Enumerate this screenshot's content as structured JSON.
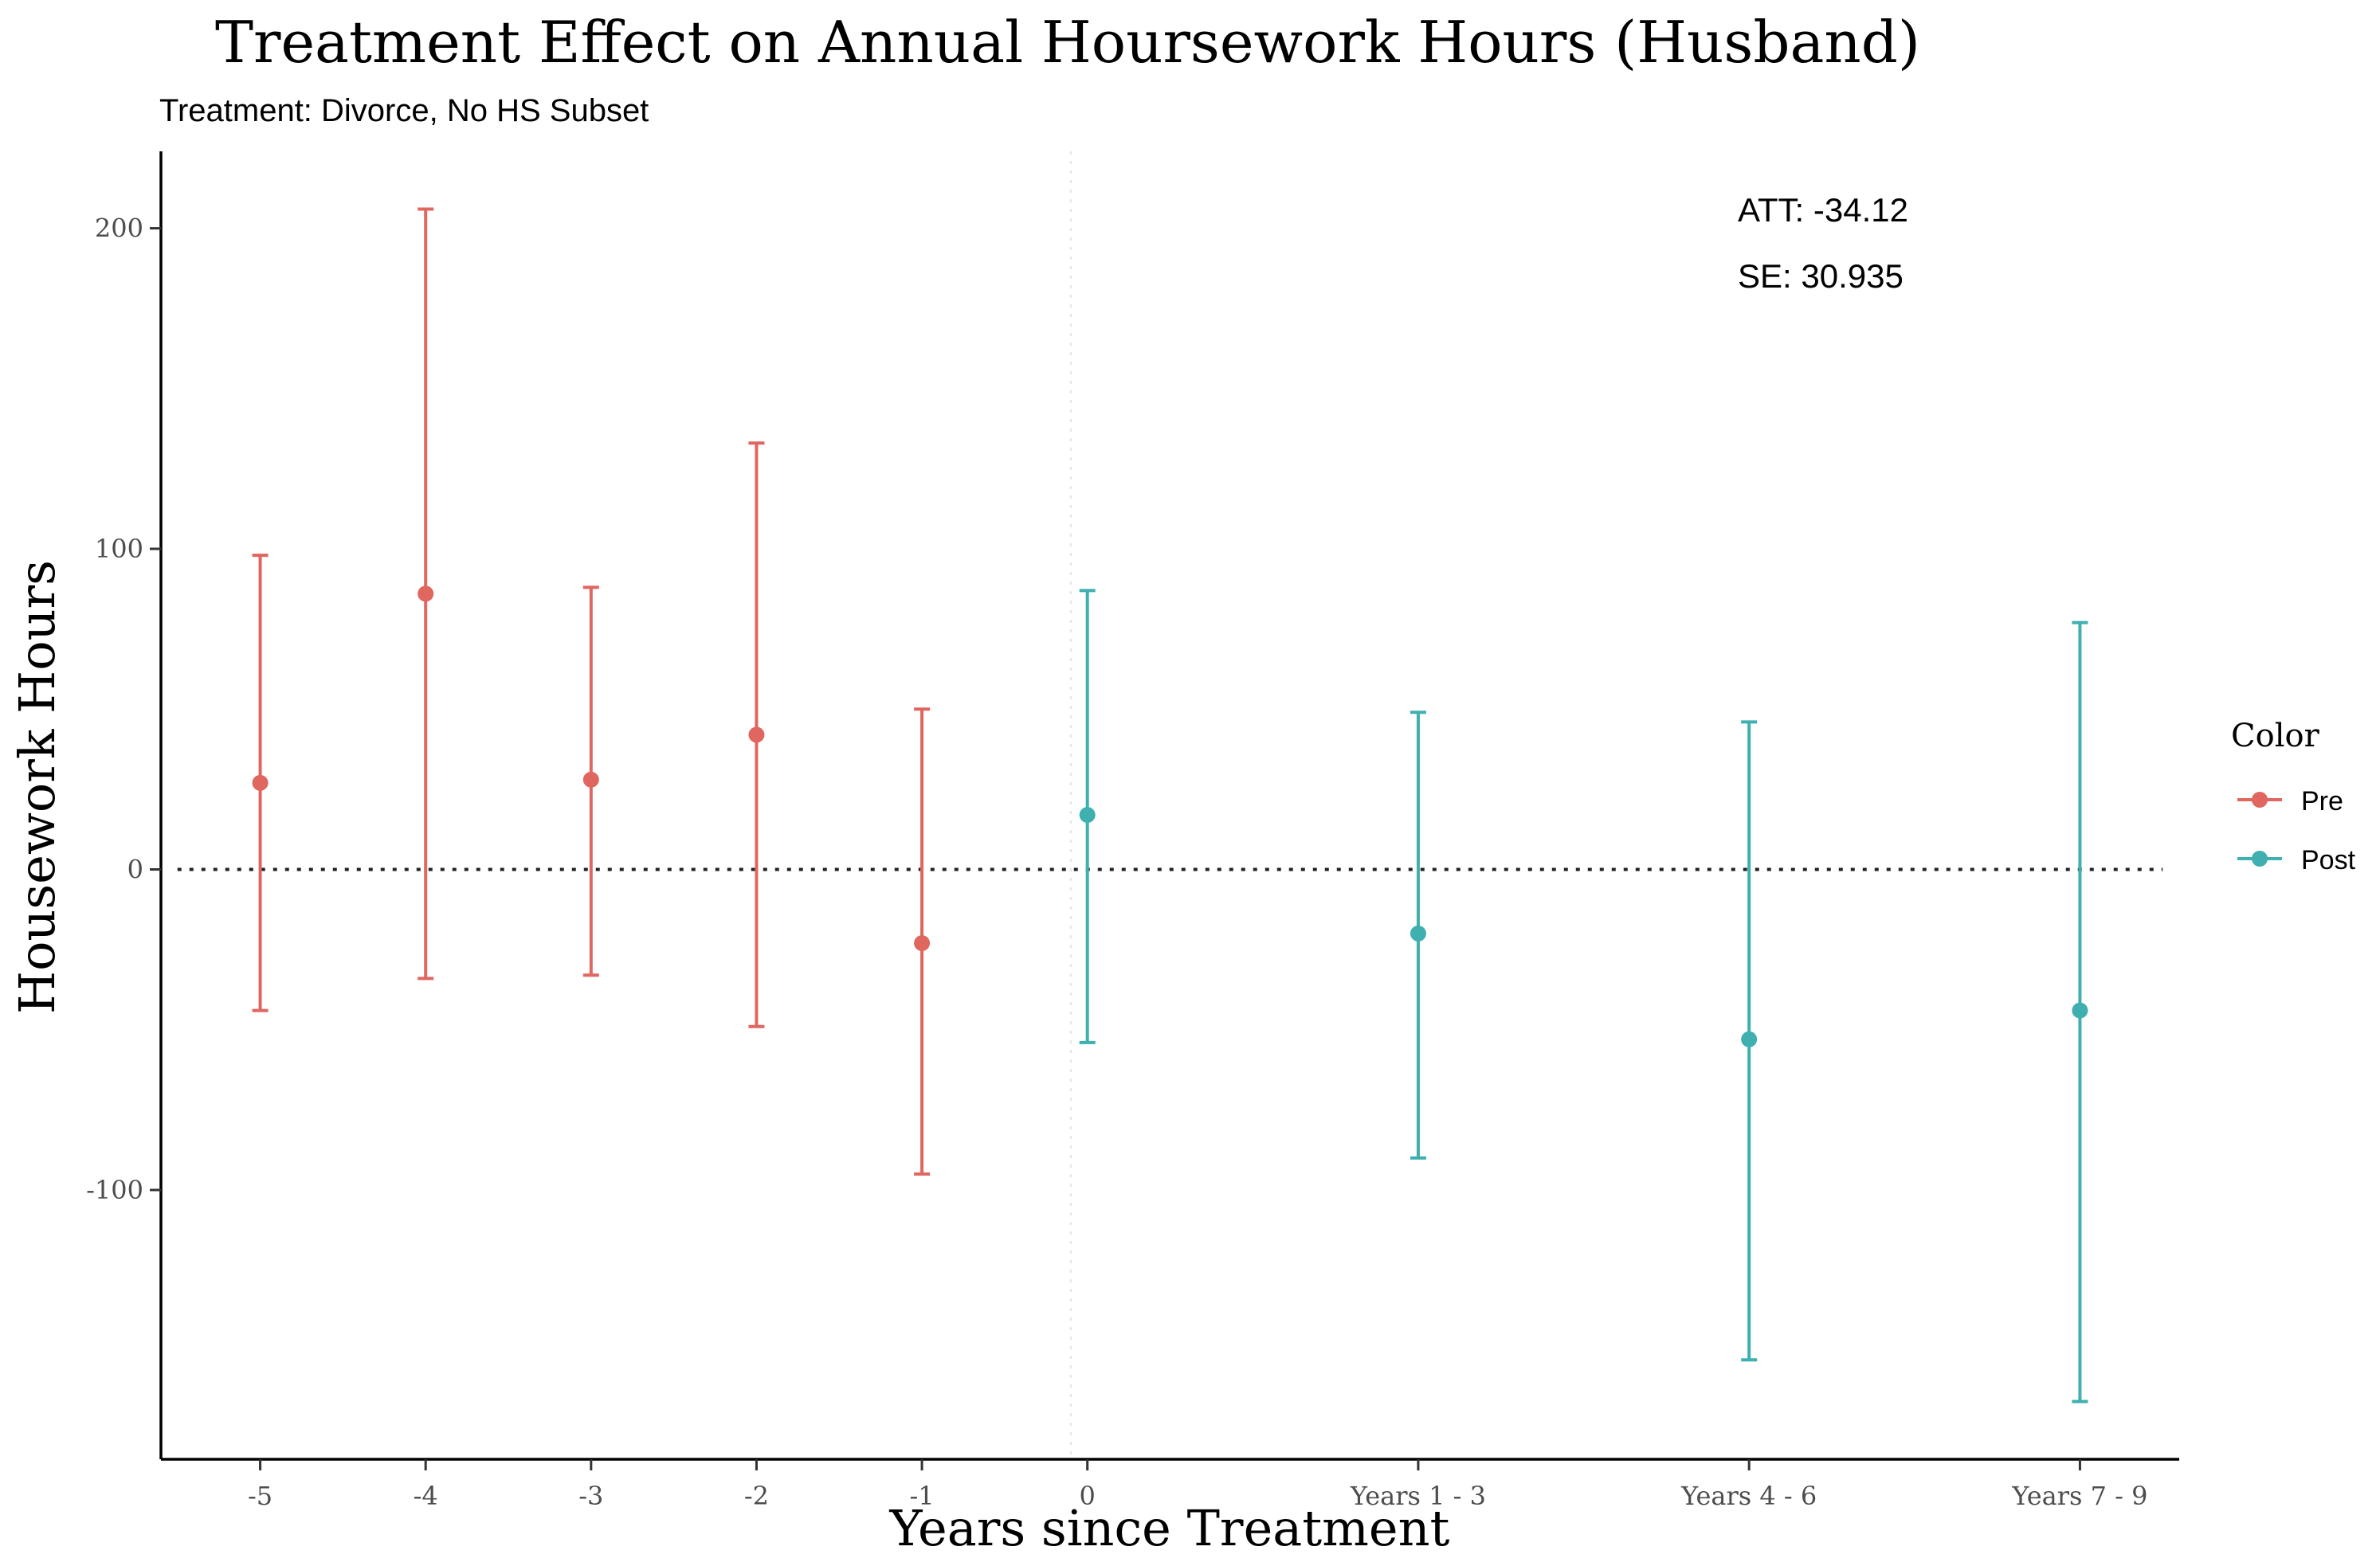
{
  "chart_data": {
    "type": "scatter",
    "title": "Treatment Effect on Annual Hoursework Hours (Husband)",
    "subtitle": "Treatment: Divorce, No HS Subset",
    "xlabel": "Years since Treatment",
    "ylabel": "Housework Hours",
    "ylim": [
      -184,
      224
    ],
    "y_ticks": [
      -100,
      0,
      100,
      200
    ],
    "y_tick_labels": [
      "-100",
      "0",
      "100",
      "200"
    ],
    "x_slots": [
      -5,
      -4,
      -3,
      -2,
      -1,
      0,
      2,
      4,
      6
    ],
    "x_tick_labels": [
      "-5",
      "-4",
      "-3",
      "-2",
      "-1",
      "0",
      "Years 1 - 3",
      "Years 4 - 6",
      "Years 7 - 9"
    ],
    "legend": {
      "title": "Color",
      "placement": "right",
      "entries": [
        {
          "label": "Pre",
          "color": "#E06660"
        },
        {
          "label": "Post",
          "color": "#3FAFB0"
        }
      ]
    },
    "annotations": {
      "att": "ATT: -34.12",
      "se": "SE:  30.935"
    },
    "series": [
      {
        "name": "Pre",
        "color": "#E06660",
        "points": [
          {
            "x_label": "-5",
            "estimate": 27,
            "ci_low": -44,
            "ci_high": 98
          },
          {
            "x_label": "-4",
            "estimate": 86,
            "ci_low": -34,
            "ci_high": 206
          },
          {
            "x_label": "-3",
            "estimate": 28,
            "ci_low": -33,
            "ci_high": 88
          },
          {
            "x_label": "-2",
            "estimate": 42,
            "ci_low": -49,
            "ci_high": 133
          },
          {
            "x_label": "-1",
            "estimate": -23,
            "ci_low": -95,
            "ci_high": 50
          }
        ]
      },
      {
        "name": "Post",
        "color": "#3FAFB0",
        "points": [
          {
            "x_label": "0",
            "estimate": 17,
            "ci_low": -54,
            "ci_high": 87
          },
          {
            "x_label": "Years 1 - 3",
            "estimate": -20,
            "ci_low": -90,
            "ci_high": 49
          },
          {
            "x_label": "Years 4 - 6",
            "estimate": -53,
            "ci_low": -153,
            "ci_high": 46
          },
          {
            "x_label": "Years 7 - 9",
            "estimate": -44,
            "ci_low": -166,
            "ci_high": 77
          }
        ]
      }
    ],
    "reference_lines": {
      "horizontal_y": 0,
      "vertical_x": -0.1
    }
  }
}
